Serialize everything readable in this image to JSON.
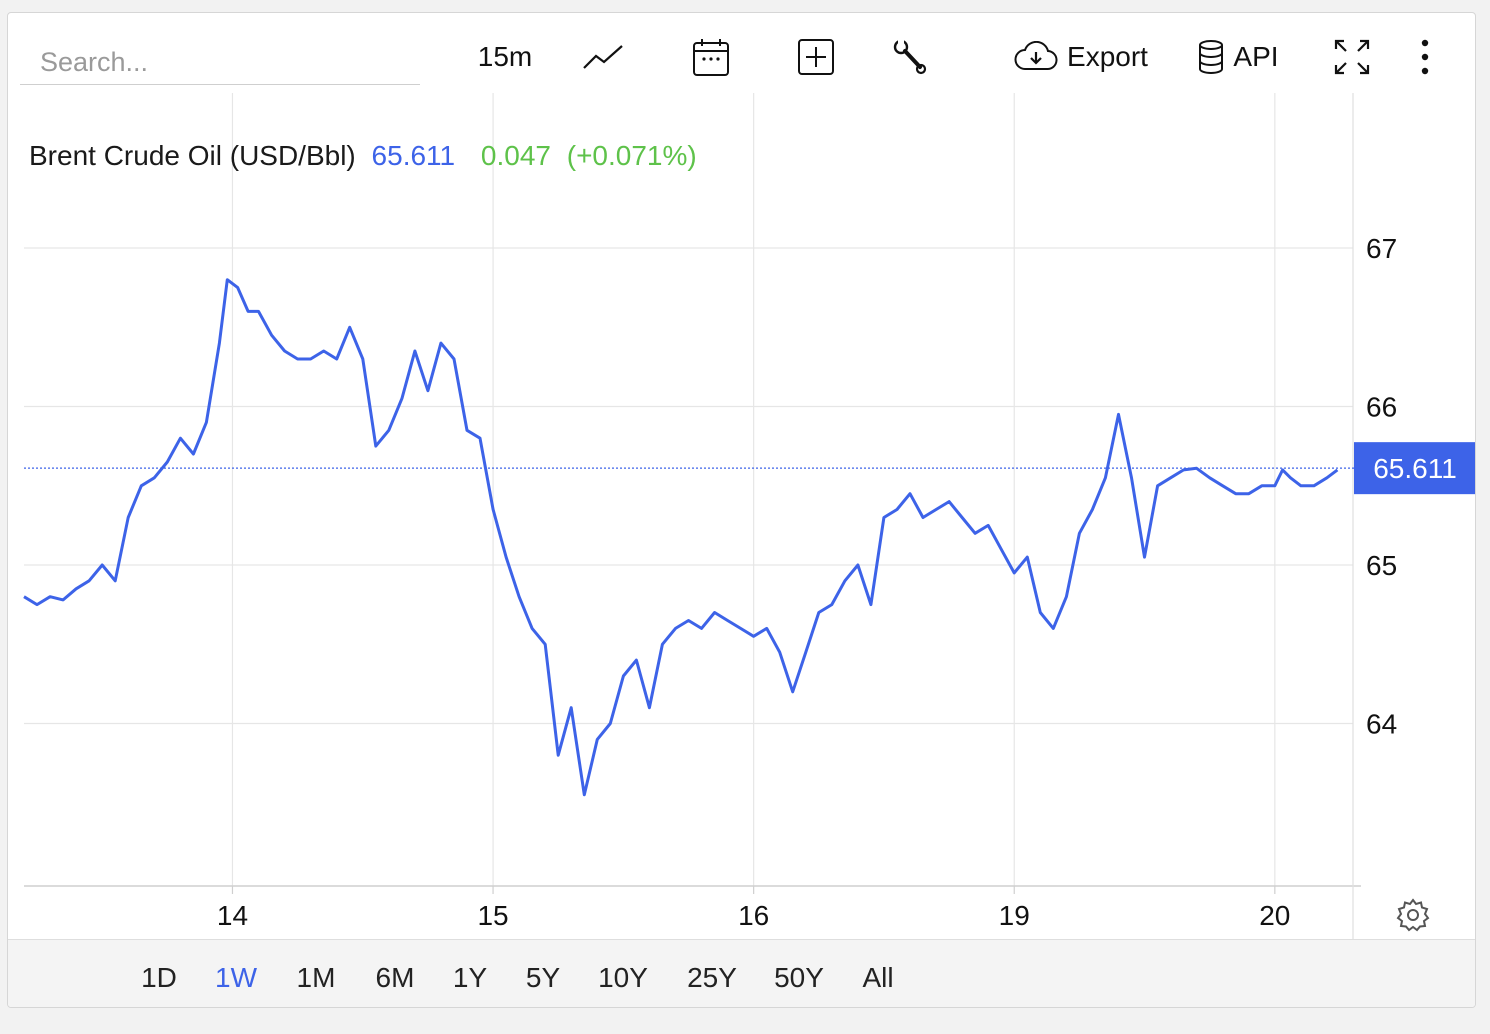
{
  "search": {
    "placeholder": "Search..."
  },
  "toolbar": {
    "interval_label": "15m",
    "export_label": "Export",
    "api_label": "API",
    "icons": [
      "chart-type-icon",
      "calendar-icon",
      "add-indicator-icon",
      "wrench-icon",
      "cloud-download-icon",
      "database-icon",
      "fullscreen-icon",
      "more-icon"
    ]
  },
  "range_tabs": [
    {
      "label": "1D",
      "active": false
    },
    {
      "label": "1W",
      "active": true
    },
    {
      "label": "1M",
      "active": false
    },
    {
      "label": "6M",
      "active": false
    },
    {
      "label": "1Y",
      "active": false
    },
    {
      "label": "5Y",
      "active": false
    },
    {
      "label": "10Y",
      "active": false
    },
    {
      "label": "25Y",
      "active": false
    },
    {
      "label": "50Y",
      "active": false
    },
    {
      "label": "All",
      "active": false
    }
  ],
  "colors": {
    "line": "#3d63e8",
    "change": "#5ec24a",
    "grid": "#e6e6e6",
    "accent": "#3d63e8"
  },
  "chart_data": {
    "type": "line",
    "title": "Brent Crude Oil (USD/Bbl)",
    "last_value": "65.611",
    "change": "0.047",
    "change_pct": "(+0.071%)",
    "price_label": "65.611",
    "x_ticks": [
      "14",
      "15",
      "16",
      "19",
      "20"
    ],
    "x_tick_pos": [
      0.8,
      1.8,
      2.8,
      3.8,
      4.8
    ],
    "xlim": [
      0.0,
      5.1
    ],
    "y_ticks": [
      "67",
      "66",
      "65",
      "64"
    ],
    "ylim": [
      63.0,
      67.8
    ],
    "grid": true,
    "series": [
      {
        "x": [
          0.0,
          0.05,
          0.1,
          0.15,
          0.2,
          0.25,
          0.3,
          0.35,
          0.4,
          0.45,
          0.5,
          0.55,
          0.6,
          0.65,
          0.7,
          0.75,
          0.78,
          0.82,
          0.86,
          0.9,
          0.95,
          1.0,
          1.05,
          1.1,
          1.15,
          1.2,
          1.25,
          1.3,
          1.35,
          1.4,
          1.45,
          1.5,
          1.55,
          1.6,
          1.65,
          1.7,
          1.75,
          1.8,
          1.85,
          1.9,
          1.95,
          2.0,
          2.05,
          2.1,
          2.15,
          2.2,
          2.25,
          2.3,
          2.35,
          2.4,
          2.45,
          2.5,
          2.55,
          2.6,
          2.65,
          2.7,
          2.75,
          2.8,
          2.85,
          2.9,
          2.95,
          3.0,
          3.05,
          3.1,
          3.15,
          3.2,
          3.25,
          3.3,
          3.35,
          3.4,
          3.45,
          3.5,
          3.55,
          3.6,
          3.65,
          3.7,
          3.75,
          3.8,
          3.85,
          3.9,
          3.95,
          4.0,
          4.05,
          4.1,
          4.15,
          4.2,
          4.25,
          4.3,
          4.35,
          4.4,
          4.45,
          4.5,
          4.55,
          4.6,
          4.65,
          4.7,
          4.75,
          4.8,
          4.83,
          4.86,
          4.9,
          4.95,
          5.0,
          5.04
        ],
        "values": [
          64.8,
          64.75,
          64.8,
          64.78,
          64.85,
          64.9,
          65.0,
          64.9,
          65.3,
          65.5,
          65.55,
          65.65,
          65.8,
          65.7,
          65.9,
          66.4,
          66.8,
          66.75,
          66.6,
          66.6,
          66.45,
          66.35,
          66.3,
          66.3,
          66.35,
          66.3,
          66.5,
          66.3,
          65.75,
          65.85,
          66.05,
          66.35,
          66.1,
          66.4,
          66.3,
          65.85,
          65.8,
          65.35,
          65.05,
          64.8,
          64.6,
          64.5,
          63.8,
          64.1,
          63.55,
          63.9,
          64.0,
          64.3,
          64.4,
          64.1,
          64.5,
          64.6,
          64.65,
          64.6,
          64.7,
          64.65,
          64.6,
          64.55,
          64.6,
          64.45,
          64.2,
          64.45,
          64.7,
          64.75,
          64.9,
          65.0,
          64.75,
          65.3,
          65.35,
          65.45,
          65.3,
          65.35,
          65.4,
          65.3,
          65.2,
          65.25,
          65.1,
          64.95,
          65.05,
          64.7,
          64.6,
          64.8,
          65.2,
          65.35,
          65.55,
          65.95,
          65.55,
          65.05,
          65.5,
          65.55,
          65.6,
          65.61,
          65.55,
          65.5,
          65.45,
          65.45,
          65.5,
          65.5,
          65.6,
          65.55,
          65.5,
          65.5,
          65.55,
          65.6
        ]
      }
    ]
  }
}
